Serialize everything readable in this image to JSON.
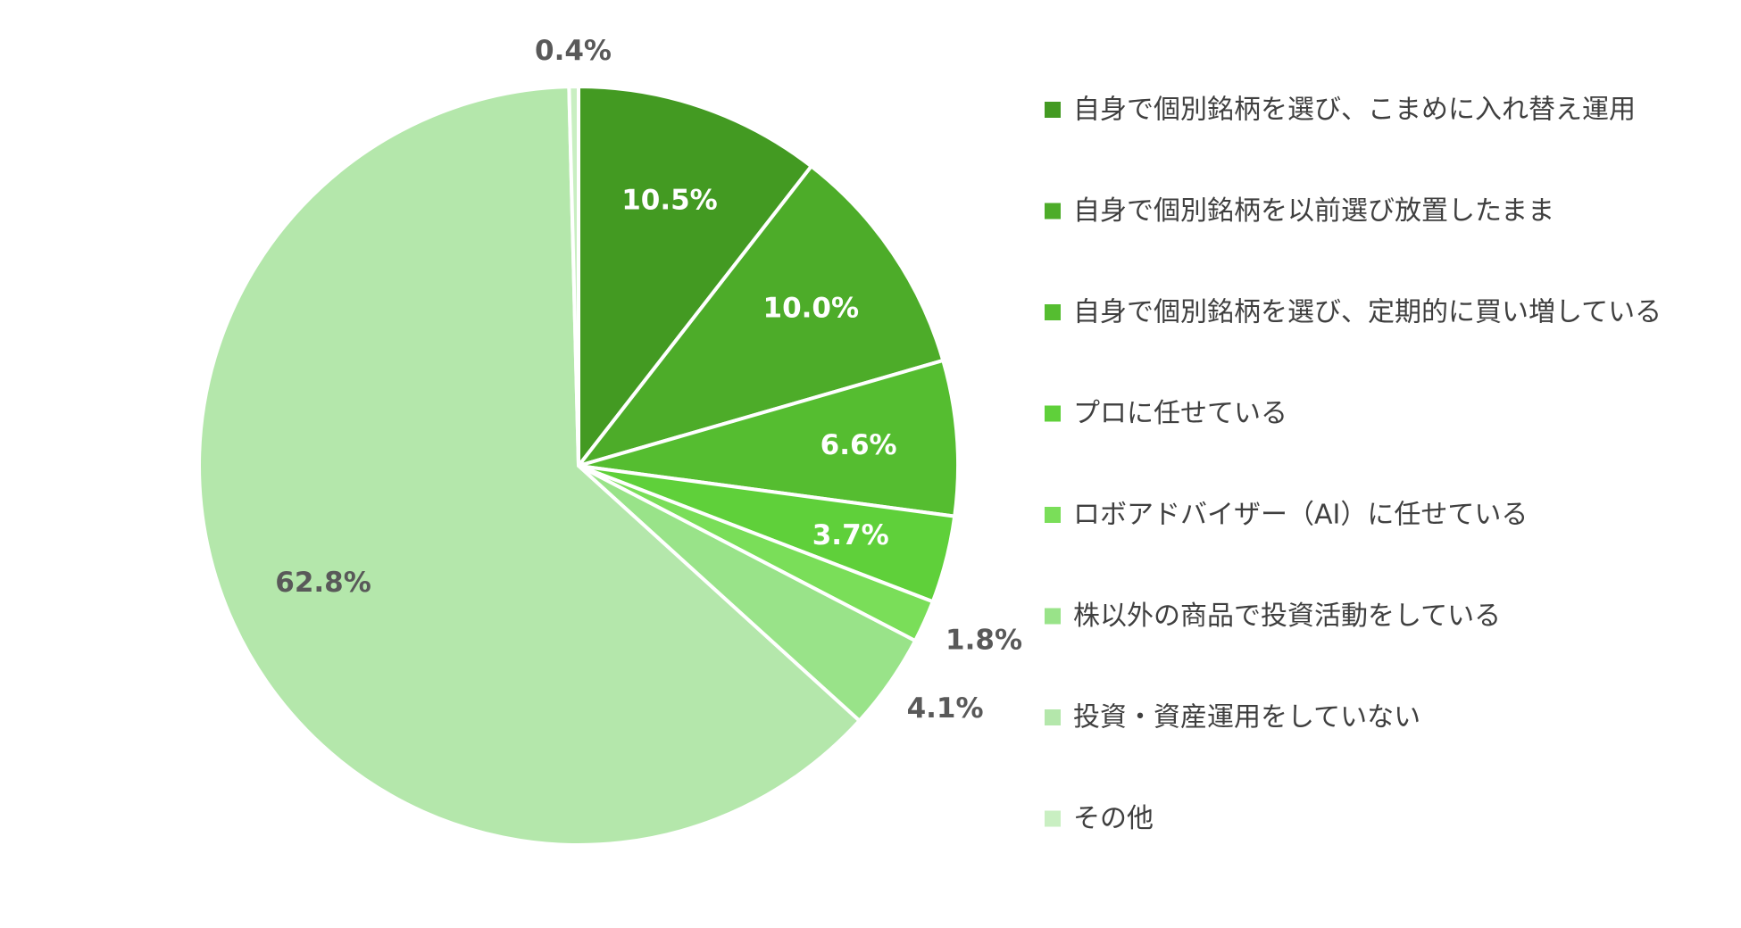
{
  "chart_data": {
    "type": "pie",
    "title": "",
    "legend_position": "right",
    "start_angle_deg": 0,
    "direction": "clockwise",
    "slices": [
      {
        "label": "自身で個別銘柄を選び、こまめに入れ替え運用",
        "value": 10.5,
        "display": "10.5%",
        "color": "#439a22",
        "label_color": "#ffffff",
        "label_position": "inside"
      },
      {
        "label": "自身で個別銘柄を以前選び放置したまま",
        "value": 10.0,
        "display": "10.0%",
        "color": "#4dac29",
        "label_color": "#ffffff",
        "label_position": "inside"
      },
      {
        "label": "自身で個別銘柄を選び、定期的に買い増している",
        "value": 6.6,
        "display": "6.6%",
        "color": "#55bd30",
        "label_color": "#ffffff",
        "label_position": "inside"
      },
      {
        "label": "プロに任せている",
        "value": 3.7,
        "display": "3.7%",
        "color": "#5fd03a",
        "label_color": "#ffffff",
        "label_position": "inside"
      },
      {
        "label": "ロボアドバイザー（AI）に任せている",
        "value": 1.8,
        "display": "1.8%",
        "color": "#7ade59",
        "label_color": "#595959",
        "label_position": "outside"
      },
      {
        "label": "株以外の商品で投資活動をしている",
        "value": 4.1,
        "display": "4.1%",
        "color": "#99e389",
        "label_color": "#595959",
        "label_position": "outside"
      },
      {
        "label": "投資・資産運用をしていない",
        "value": 62.8,
        "display": "62.8%",
        "color": "#b4e7ab",
        "label_color": "#595959",
        "label_position": "inside"
      },
      {
        "label": "その他",
        "value": 0.4,
        "display": "0.4%",
        "color": "#c9efc2",
        "label_color": "#595959",
        "label_position": "outside"
      }
    ]
  }
}
